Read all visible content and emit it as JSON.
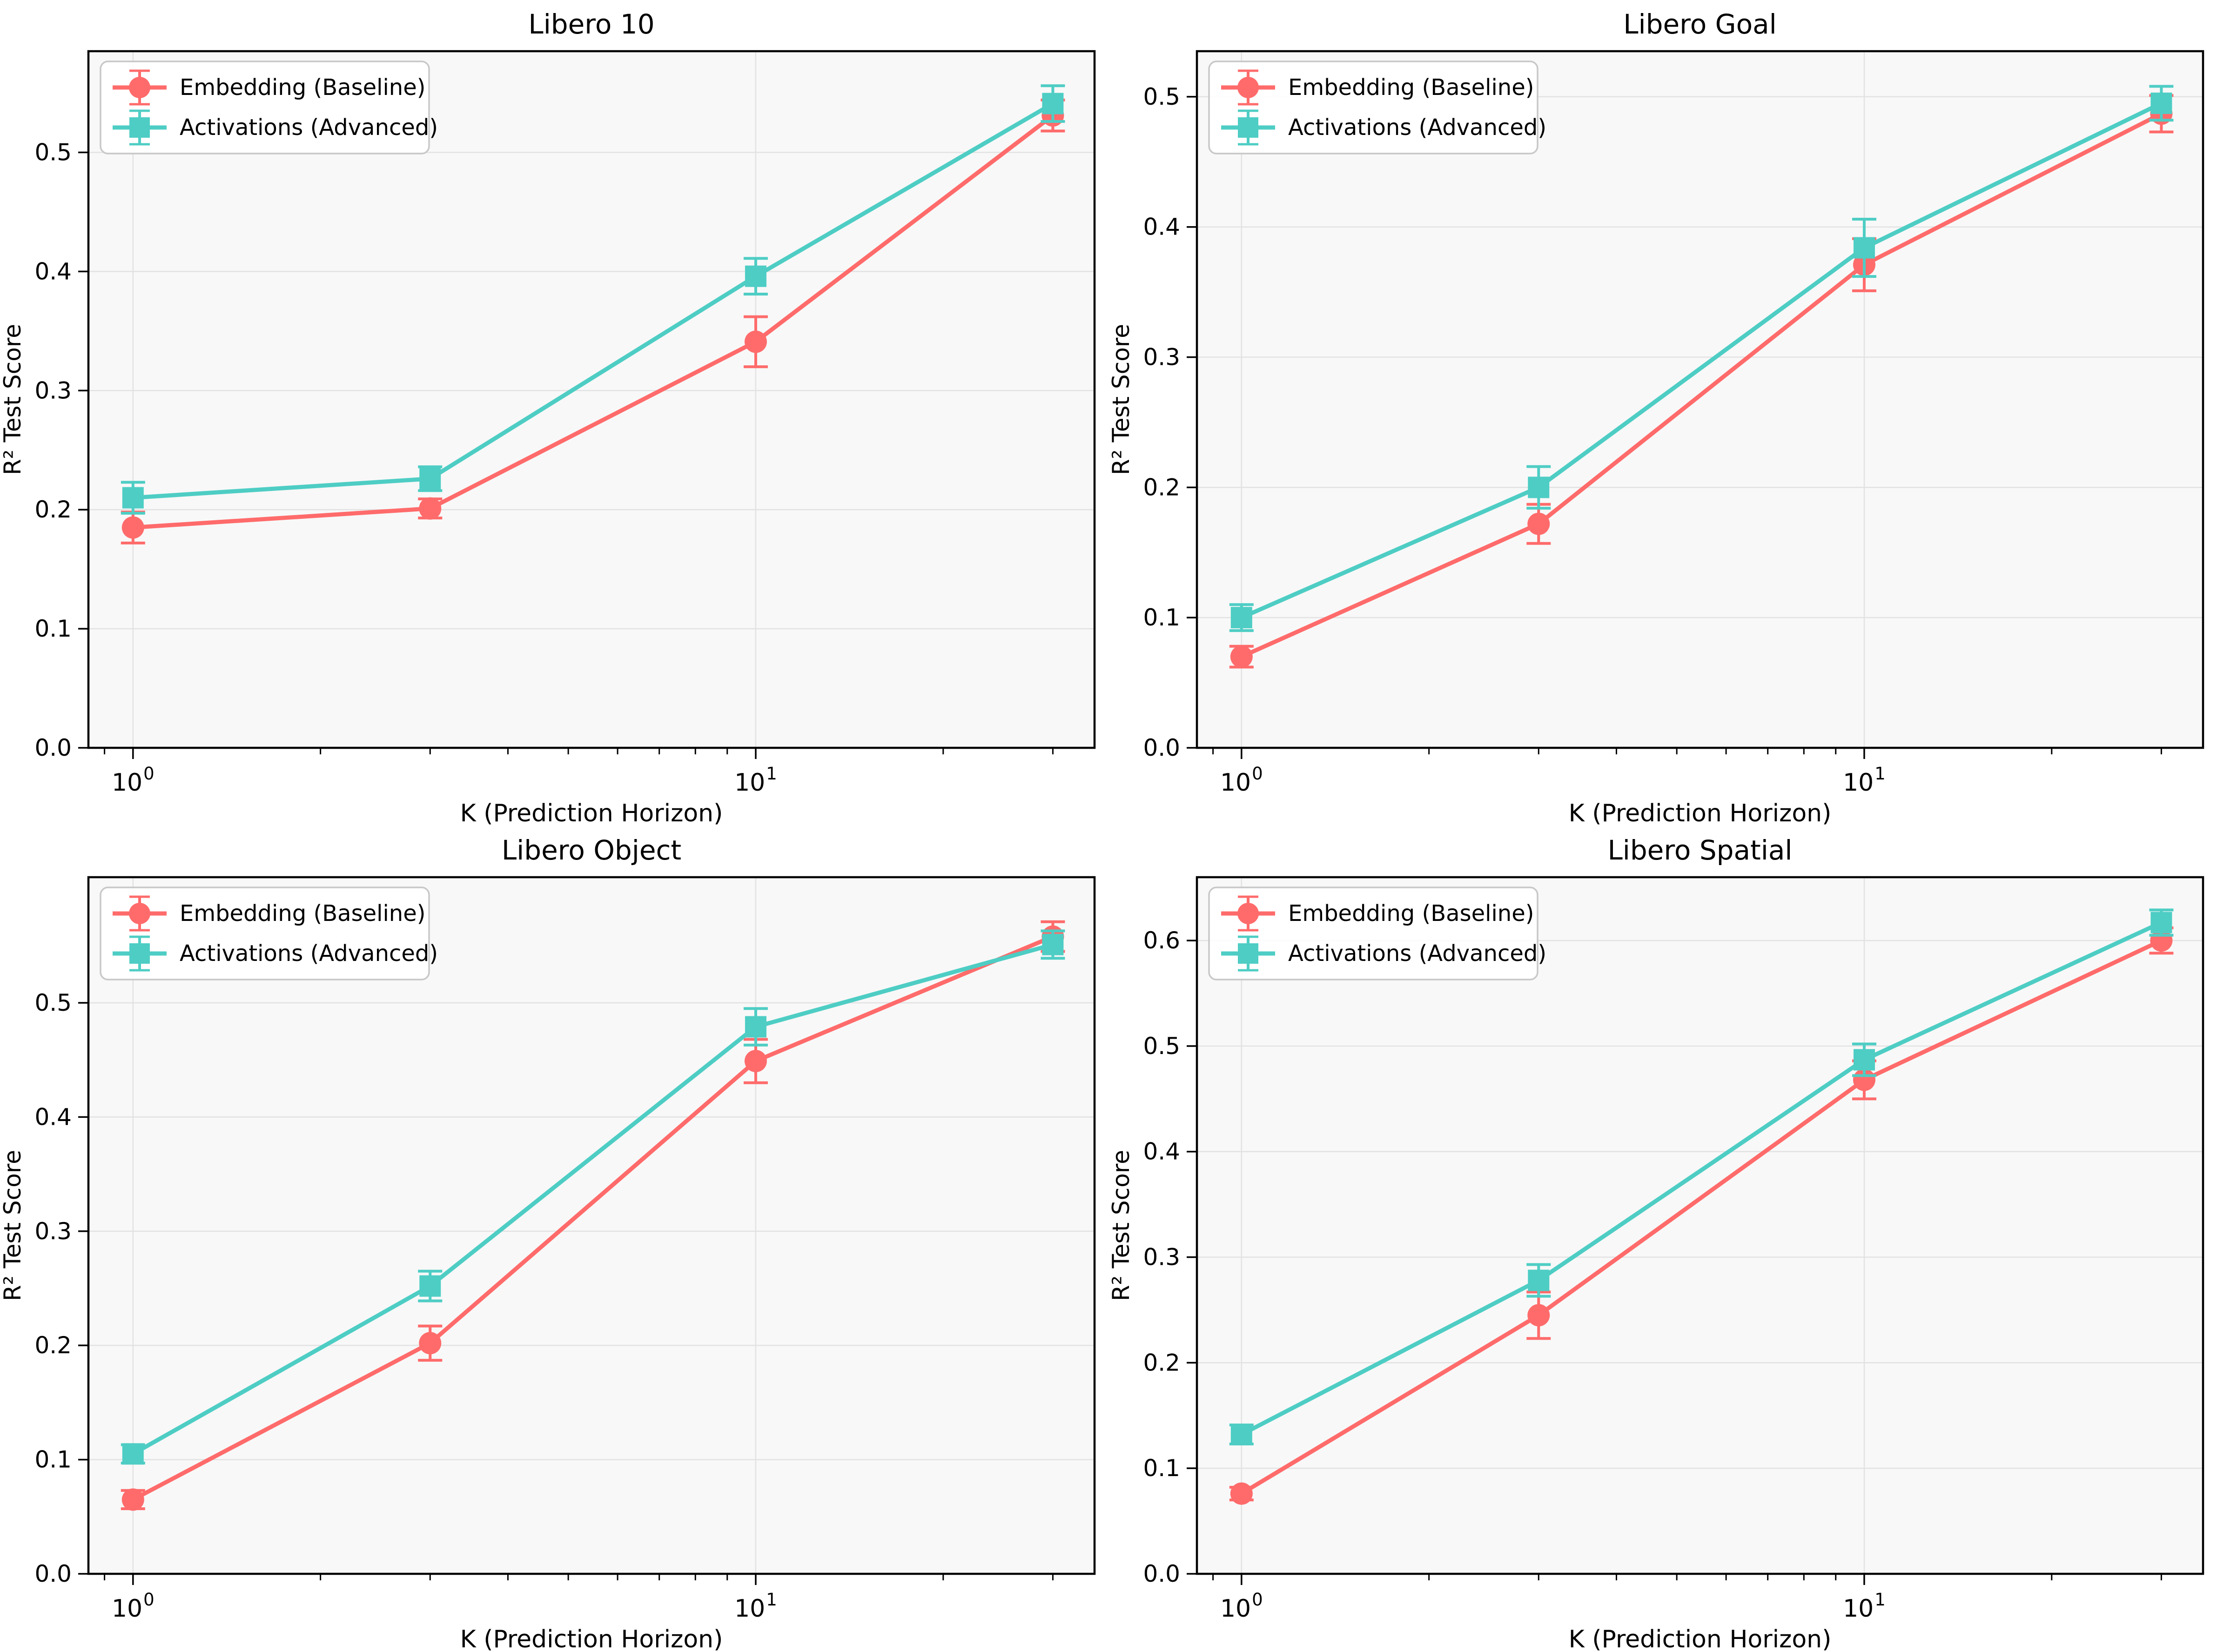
{
  "figure": {
    "background": "#ffffff",
    "plot_background": "#f8f8f8",
    "grid_color": "#e2e2e2",
    "spine_color": "#000000",
    "legend_border_color": "#c8c8c8",
    "legend_background": "#ffffff"
  },
  "colors": {
    "embedding": "#FF6B6B",
    "activations": "#4ECDC4"
  },
  "axis": {
    "xlabel": "K (Prediction Horizon)",
    "ylabel": "R² Test Score",
    "xscale": "log",
    "xlim": [
      0.848,
      35
    ],
    "x_major_ticks": [
      {
        "value": 1,
        "base": "10",
        "exp": "0"
      },
      {
        "value": 10,
        "base": "10",
        "exp": "1"
      }
    ],
    "x_minor_ticks": [
      0.9,
      2,
      3,
      4,
      5,
      6,
      7,
      8,
      9,
      20,
      30
    ]
  },
  "legend": {
    "items": [
      {
        "label": "Embedding (Baseline)",
        "marker": "circle",
        "color": "#FF6B6B"
      },
      {
        "label": "Activations (Advanced)",
        "marker": "square",
        "color": "#4ECDC4"
      }
    ]
  },
  "chart_data": [
    {
      "type": "line",
      "title": "Libero 10",
      "xlabel": "K (Prediction Horizon)",
      "ylabel": "R² Test Score",
      "x": [
        1,
        3,
        10,
        30
      ],
      "ylim": [
        0,
        0.585
      ],
      "yticks": [
        0.0,
        0.1,
        0.2,
        0.3,
        0.4,
        0.5
      ],
      "grid": true,
      "legend_position": "upper-left",
      "series": [
        {
          "name": "Embedding (Baseline)",
          "marker": "circle",
          "color": "#FF6B6B",
          "values": [
            0.185,
            0.201,
            0.341,
            0.531
          ],
          "err": [
            0.013,
            0.008,
            0.021,
            0.013
          ]
        },
        {
          "name": "Activations (Advanced)",
          "marker": "square",
          "color": "#4ECDC4",
          "values": [
            0.21,
            0.226,
            0.396,
            0.541
          ],
          "err": [
            0.013,
            0.01,
            0.015,
            0.015
          ]
        }
      ]
    },
    {
      "type": "line",
      "title": "Libero Goal",
      "xlabel": "K (Prediction Horizon)",
      "ylabel": "R² Test Score",
      "x": [
        1,
        3,
        10,
        30
      ],
      "ylim": [
        0,
        0.535
      ],
      "yticks": [
        0.0,
        0.1,
        0.2,
        0.3,
        0.4,
        0.5
      ],
      "grid": true,
      "legend_position": "upper-left",
      "series": [
        {
          "name": "Embedding (Baseline)",
          "marker": "circle",
          "color": "#FF6B6B",
          "values": [
            0.07,
            0.172,
            0.371,
            0.487
          ],
          "err": [
            0.008,
            0.015,
            0.02,
            0.014
          ]
        },
        {
          "name": "Activations (Advanced)",
          "marker": "square",
          "color": "#4ECDC4",
          "values": [
            0.1,
            0.2,
            0.384,
            0.495
          ],
          "err": [
            0.01,
            0.016,
            0.022,
            0.013
          ]
        }
      ]
    },
    {
      "type": "line",
      "title": "Libero Object",
      "xlabel": "K (Prediction Horizon)",
      "ylabel": "R² Test Score",
      "x": [
        1,
        3,
        10,
        30
      ],
      "ylim": [
        0,
        0.61
      ],
      "yticks": [
        0.0,
        0.1,
        0.2,
        0.3,
        0.4,
        0.5
      ],
      "grid": true,
      "legend_position": "upper-left",
      "series": [
        {
          "name": "Embedding (Baseline)",
          "marker": "circle",
          "color": "#FF6B6B",
          "values": [
            0.065,
            0.202,
            0.449,
            0.558
          ],
          "err": [
            0.008,
            0.015,
            0.019,
            0.013
          ]
        },
        {
          "name": "Activations (Advanced)",
          "marker": "square",
          "color": "#4ECDC4",
          "values": [
            0.105,
            0.252,
            0.479,
            0.551
          ],
          "err": [
            0.008,
            0.013,
            0.016,
            0.012
          ]
        }
      ]
    },
    {
      "type": "line",
      "title": "Libero Spatial",
      "xlabel": "K (Prediction Horizon)",
      "ylabel": "R² Test Score",
      "x": [
        1,
        3,
        10,
        30
      ],
      "ylim": [
        0,
        0.66
      ],
      "yticks": [
        0.0,
        0.1,
        0.2,
        0.3,
        0.4,
        0.5,
        0.6
      ],
      "grid": true,
      "legend_position": "upper-left",
      "series": [
        {
          "name": "Embedding (Baseline)",
          "marker": "circle",
          "color": "#FF6B6B",
          "values": [
            0.076,
            0.245,
            0.468,
            0.6
          ],
          "err": [
            0.006,
            0.022,
            0.018,
            0.012
          ]
        },
        {
          "name": "Activations (Advanced)",
          "marker": "square",
          "color": "#4ECDC4",
          "values": [
            0.132,
            0.278,
            0.487,
            0.617
          ],
          "err": [
            0.009,
            0.015,
            0.015,
            0.012
          ]
        }
      ]
    }
  ]
}
